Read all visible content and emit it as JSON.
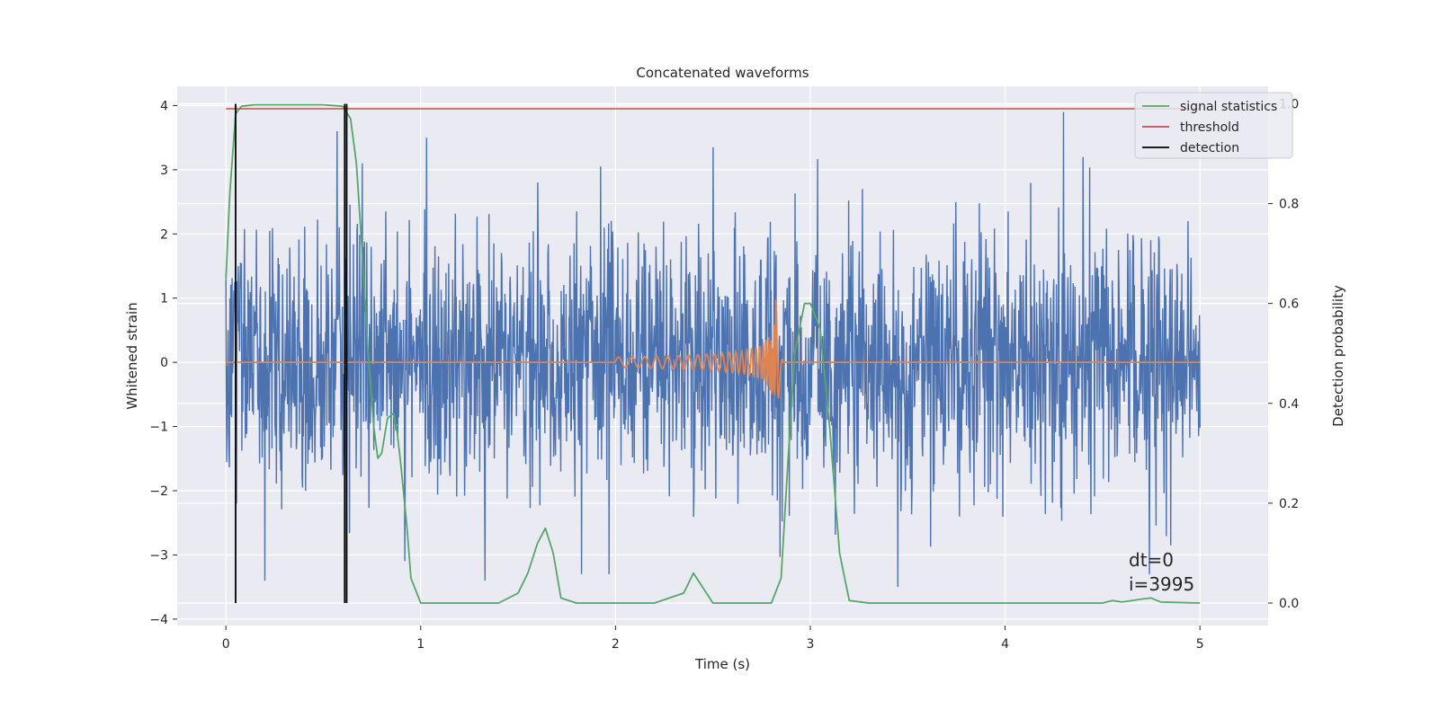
{
  "chart_data": {
    "type": "line",
    "title": "Concatenated waveforms",
    "xlabel": "Time (s)",
    "ylabel": "Whitened strain",
    "y2label": "Detection probability",
    "xlim": [
      -0.25,
      5.35
    ],
    "ylim": [
      -4.1,
      4.3
    ],
    "y2lim": [
      -0.045,
      1.035
    ],
    "xticks": [
      0,
      1,
      2,
      3,
      4,
      5
    ],
    "xtick_labels": [
      "0",
      "1",
      "2",
      "3",
      "4",
      "5"
    ],
    "yticks": [
      4,
      3,
      2,
      1,
      0,
      -1,
      -2,
      -3,
      -4
    ],
    "ytick_labels": [
      "4",
      "3",
      "2",
      "1",
      "0",
      "−1",
      "−2",
      "−3",
      "−4"
    ],
    "y2ticks": [
      1.0,
      0.8,
      0.6,
      0.4,
      0.2,
      0.0
    ],
    "y2tick_labels": [
      "1.0",
      "0.8",
      "0.6",
      "0.4",
      "0.2",
      "0.0"
    ],
    "grid": true,
    "legend_position": "top-right",
    "colors": {
      "background": "#eaeaf2",
      "strain": "#4c72b0",
      "template": "#dd8452",
      "statistics": "#55a868",
      "threshold": "#c44e52",
      "detection": "#000000",
      "grid": "#ffffff"
    },
    "series": [
      {
        "name": "",
        "axis": "left",
        "description": "noisy whitened strain, roughly Gaussian with amplitude about 1, peaks near 3.9 at t=4.3 and 3.5 at t=1.03",
        "t_range": [
          0,
          5
        ],
        "peaks": [
          [
            0.0,
            1.3
          ],
          [
            0.57,
            3.6
          ],
          [
            0.7,
            3.1
          ],
          [
            1.03,
            3.5
          ],
          [
            1.6,
            2.8
          ],
          [
            2.5,
            3.35
          ],
          [
            4.3,
            3.9
          ],
          [
            4.4,
            3.2
          ],
          [
            4.74,
            -3.3
          ],
          [
            3.45,
            -3.5
          ],
          [
            1.33,
            -3.4
          ],
          [
            0.2,
            -3.4
          ]
        ]
      },
      {
        "name": "",
        "axis": "left",
        "description": "chirp template starting at t=2.0, growing in amplitude and frequency until merger near t=2.83 (amplitude ~1.65), zero elsewhere",
        "start": 2.0,
        "merger": 2.83,
        "start_amplitude": 0.08,
        "peak_amplitude": 1.65
      },
      {
        "name": "signal statistics",
        "axis": "right",
        "x": [
          0.0,
          0.02,
          0.05,
          0.08,
          0.15,
          0.3,
          0.5,
          0.6,
          0.64,
          0.67,
          0.7,
          0.73,
          0.76,
          0.78,
          0.8,
          0.83,
          0.86,
          0.88,
          0.9,
          0.93,
          0.95,
          1.0,
          1.4,
          1.5,
          1.55,
          1.6,
          1.64,
          1.68,
          1.72,
          1.8,
          2.2,
          2.35,
          2.4,
          2.45,
          2.5,
          2.6,
          2.8,
          2.85,
          2.88,
          2.92,
          2.97,
          3.0,
          3.05,
          3.1,
          3.15,
          3.2,
          3.3,
          4.0,
          4.5,
          4.55,
          4.6,
          4.7,
          4.75,
          4.8,
          5.0
        ],
        "y": [
          0.65,
          0.82,
          0.98,
          0.995,
          0.998,
          0.998,
          0.998,
          0.995,
          0.97,
          0.88,
          0.7,
          0.5,
          0.35,
          0.29,
          0.3,
          0.37,
          0.38,
          0.34,
          0.27,
          0.15,
          0.05,
          0.0,
          0.0,
          0.02,
          0.06,
          0.12,
          0.15,
          0.1,
          0.01,
          0.0,
          0.0,
          0.02,
          0.06,
          0.03,
          0.0,
          0.0,
          0.0,
          0.05,
          0.25,
          0.5,
          0.6,
          0.6,
          0.55,
          0.35,
          0.1,
          0.005,
          0.0,
          0.0,
          0.0,
          0.005,
          0.002,
          0.008,
          0.01,
          0.002,
          0.0
        ]
      },
      {
        "name": "threshold",
        "axis": "right",
        "x": [
          0,
          5
        ],
        "y": [
          0.99,
          0.99
        ]
      },
      {
        "name": "detection",
        "axis": "right",
        "x_positions": [
          0.05,
          0.61,
          0.62
        ],
        "y_range": [
          0,
          1.0
        ]
      }
    ],
    "legend": [
      "signal statistics",
      "threshold",
      "detection"
    ],
    "annotations": [
      "dt=0",
      "i=3995"
    ]
  }
}
